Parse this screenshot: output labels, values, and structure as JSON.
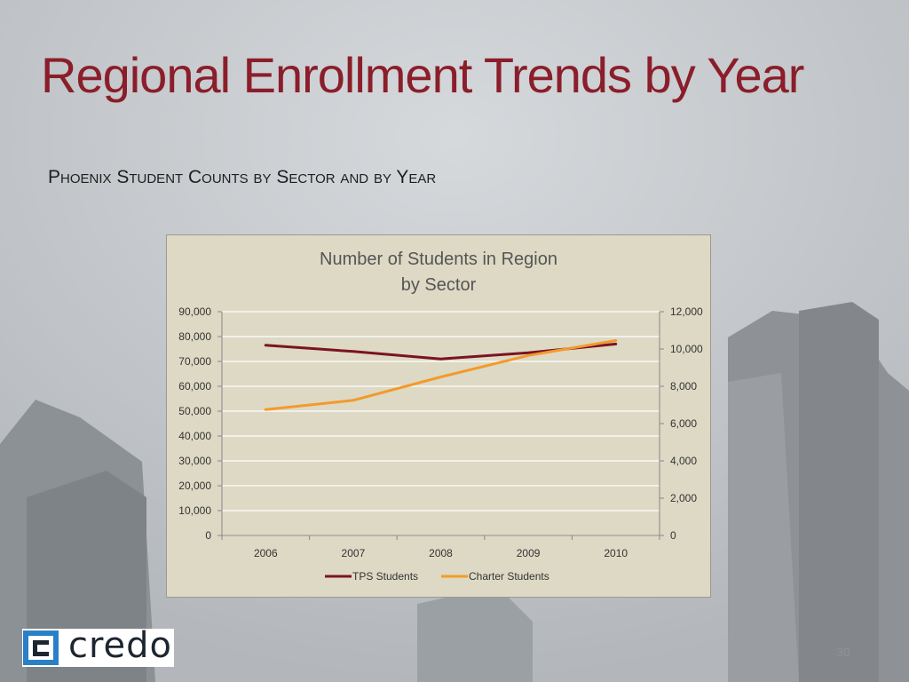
{
  "slide": {
    "title": "Regional Enrollment Trends by Year",
    "subtitle": "Phoenix Student Counts by Sector and by Year",
    "page_number": "30",
    "logo_text": "credo"
  },
  "colors": {
    "title": "#8a1e2a",
    "tps_line": "#7b1321",
    "charter_line": "#f39a2b",
    "chart_bg": "#ddd9c4",
    "gridline": "#ffffff"
  },
  "chart_data": {
    "type": "line",
    "title_lines": [
      "Number of Students in Region",
      "by Sector"
    ],
    "categories": [
      "2006",
      "2007",
      "2008",
      "2009",
      "2010"
    ],
    "y_left": {
      "min": 0,
      "max": 90000,
      "step": 10000,
      "ticks": [
        "0",
        "10,000",
        "20,000",
        "30,000",
        "40,000",
        "50,000",
        "60,000",
        "70,000",
        "80,000",
        "90,000"
      ]
    },
    "y_right": {
      "min": 0,
      "max": 12000,
      "step": 2000,
      "ticks": [
        "0",
        "2,000",
        "4,000",
        "6,000",
        "8,000",
        "10,000",
        "12,000"
      ]
    },
    "series": [
      {
        "name": "TPS Students",
        "axis": "left",
        "color": "#7b1321",
        "values": [
          76500,
          74000,
          71000,
          73500,
          77000
        ]
      },
      {
        "name": "Charter Students",
        "axis": "right",
        "color": "#f39a2b",
        "values": [
          6750,
          7250,
          8500,
          9650,
          10450
        ]
      }
    ],
    "grid": true,
    "legend": "bottom"
  }
}
